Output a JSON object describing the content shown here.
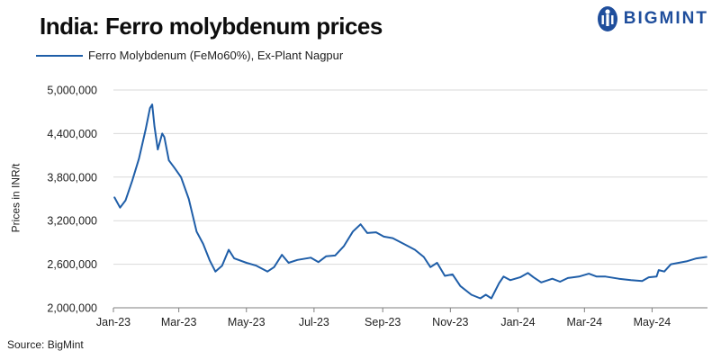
{
  "title": "India: Ferro molybdenum prices",
  "brand": {
    "name": "BIGMINT",
    "color": "#1f4e9c"
  },
  "source": "Source: BigMint",
  "chart_data": {
    "type": "line",
    "ylabel": "Prices in INR/t",
    "ylim": [
      2000000,
      5000000
    ],
    "yticks": [
      2000000,
      2600000,
      3200000,
      3800000,
      4400000,
      5000000
    ],
    "ytick_labels": [
      "2,000,000",
      "2,600,000",
      "3,200,000",
      "3,800,000",
      "4,400,000",
      "5,000,000"
    ],
    "xlim": [
      "2023-01-01",
      "2024-06-20"
    ],
    "xticks": [
      "2023-01-01",
      "2023-03-01",
      "2023-05-01",
      "2023-07-01",
      "2023-09-01",
      "2023-11-01",
      "2024-01-01",
      "2024-03-01",
      "2024-05-01"
    ],
    "xtick_labels": [
      "Jan-23",
      "Mar-23",
      "May-23",
      "Jul-23",
      "Sep-23",
      "Nov-23",
      "Jan-24",
      "Mar-24",
      "May-24"
    ],
    "grid": "horizontal",
    "legend_position": "top-left",
    "series": [
      {
        "name": "Ferro Molybdenum (FeMo60%), Ex-Plant Nagpur",
        "color": "#1f5ea8",
        "points": [
          [
            "2023-01-02",
            3520000
          ],
          [
            "2023-01-07",
            3380000
          ],
          [
            "2023-01-12",
            3480000
          ],
          [
            "2023-01-18",
            3750000
          ],
          [
            "2023-01-24",
            4050000
          ],
          [
            "2023-01-30",
            4450000
          ],
          [
            "2023-02-03",
            4750000
          ],
          [
            "2023-02-05",
            4800000
          ],
          [
            "2023-02-07",
            4500000
          ],
          [
            "2023-02-10",
            4180000
          ],
          [
            "2023-02-14",
            4400000
          ],
          [
            "2023-02-16",
            4350000
          ],
          [
            "2023-02-20",
            4030000
          ],
          [
            "2023-02-25",
            3930000
          ],
          [
            "2023-03-03",
            3800000
          ],
          [
            "2023-03-10",
            3500000
          ],
          [
            "2023-03-17",
            3050000
          ],
          [
            "2023-03-23",
            2880000
          ],
          [
            "2023-03-29",
            2650000
          ],
          [
            "2023-04-03",
            2500000
          ],
          [
            "2023-04-09",
            2580000
          ],
          [
            "2023-04-15",
            2800000
          ],
          [
            "2023-04-20",
            2680000
          ],
          [
            "2023-05-01",
            2620000
          ],
          [
            "2023-05-10",
            2580000
          ],
          [
            "2023-05-20",
            2500000
          ],
          [
            "2023-05-26",
            2560000
          ],
          [
            "2023-06-02",
            2730000
          ],
          [
            "2023-06-08",
            2620000
          ],
          [
            "2023-06-16",
            2660000
          ],
          [
            "2023-06-28",
            2690000
          ],
          [
            "2023-07-05",
            2630000
          ],
          [
            "2023-07-12",
            2710000
          ],
          [
            "2023-07-20",
            2720000
          ],
          [
            "2023-07-28",
            2850000
          ],
          [
            "2023-08-05",
            3050000
          ],
          [
            "2023-08-12",
            3150000
          ],
          [
            "2023-08-18",
            3030000
          ],
          [
            "2023-08-26",
            3040000
          ],
          [
            "2023-09-02",
            2980000
          ],
          [
            "2023-09-10",
            2960000
          ],
          [
            "2023-09-20",
            2880000
          ],
          [
            "2023-09-30",
            2800000
          ],
          [
            "2023-10-08",
            2700000
          ],
          [
            "2023-10-14",
            2560000
          ],
          [
            "2023-10-20",
            2620000
          ],
          [
            "2023-10-27",
            2440000
          ],
          [
            "2023-11-03",
            2460000
          ],
          [
            "2023-11-10",
            2300000
          ],
          [
            "2023-11-20",
            2180000
          ],
          [
            "2023-11-28",
            2130000
          ],
          [
            "2023-12-03",
            2180000
          ],
          [
            "2023-12-08",
            2130000
          ],
          [
            "2023-12-15",
            2340000
          ],
          [
            "2023-12-19",
            2430000
          ],
          [
            "2023-12-25",
            2380000
          ],
          [
            "2024-01-03",
            2420000
          ],
          [
            "2024-01-10",
            2480000
          ],
          [
            "2024-01-15",
            2420000
          ],
          [
            "2024-01-22",
            2350000
          ],
          [
            "2024-02-01",
            2400000
          ],
          [
            "2024-02-08",
            2360000
          ],
          [
            "2024-02-15",
            2410000
          ],
          [
            "2024-02-25",
            2430000
          ],
          [
            "2024-03-05",
            2470000
          ],
          [
            "2024-03-12",
            2430000
          ],
          [
            "2024-03-20",
            2430000
          ],
          [
            "2024-04-01",
            2400000
          ],
          [
            "2024-04-12",
            2380000
          ],
          [
            "2024-04-22",
            2370000
          ],
          [
            "2024-04-28",
            2420000
          ],
          [
            "2024-05-05",
            2430000
          ],
          [
            "2024-05-07",
            2520000
          ],
          [
            "2024-05-12",
            2500000
          ],
          [
            "2024-05-18",
            2600000
          ],
          [
            "2024-05-25",
            2620000
          ],
          [
            "2024-06-01",
            2640000
          ],
          [
            "2024-06-10",
            2680000
          ],
          [
            "2024-06-19",
            2700000
          ]
        ]
      }
    ]
  }
}
